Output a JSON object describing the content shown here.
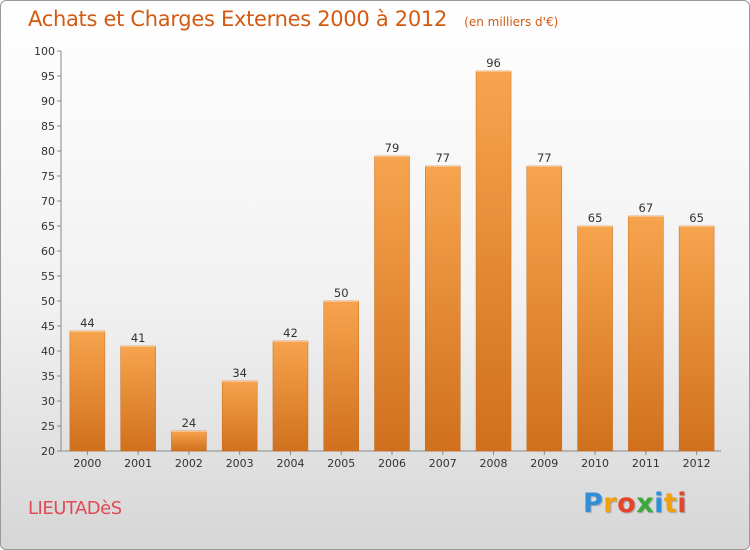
{
  "chart_data": {
    "type": "bar",
    "title": "Achats et Charges Externes 2000 à 2012",
    "unit_label": "(en milliers d'€)",
    "categories": [
      "2000",
      "2001",
      "2002",
      "2003",
      "2004",
      "2005",
      "2006",
      "2007",
      "2008",
      "2009",
      "2010",
      "2011",
      "2012"
    ],
    "values": [
      44,
      41,
      24,
      34,
      42,
      50,
      79,
      77,
      96,
      77,
      65,
      67,
      65
    ],
    "ylim": [
      20,
      100
    ],
    "yticks": [
      20,
      25,
      30,
      35,
      40,
      45,
      50,
      55,
      60,
      65,
      70,
      75,
      80,
      85,
      90,
      95,
      100
    ],
    "grid": false,
    "bar_color_top": "#f7a44e",
    "bar_color_bottom": "#d0701c"
  },
  "footer": {
    "place": "LIEUTADèS",
    "logo_letters": [
      {
        "ch": "P",
        "color": "#2f8fd6"
      },
      {
        "ch": "r",
        "color": "#f2a10c"
      },
      {
        "ch": "o",
        "color": "#e5452a"
      },
      {
        "ch": "x",
        "color": "#3aaa3a"
      },
      {
        "ch": "i",
        "color": "#2f8fd6"
      },
      {
        "ch": "t",
        "color": "#f2a10c"
      },
      {
        "ch": "i",
        "color": "#e5452a"
      }
    ]
  }
}
